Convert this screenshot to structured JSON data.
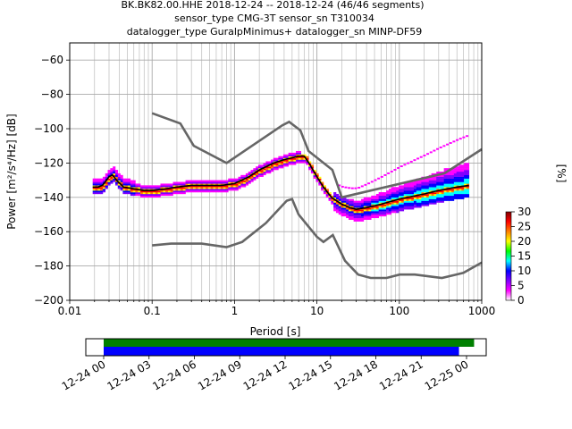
{
  "header": {
    "line1": "BK.BK82.00.HHE   2018-12-24 -- 2018-12-24  (46/46 segments)",
    "line2": "sensor_type CMG-3T sensor_sn T310034",
    "line3": "datalogger_type GuralpMinimus+ datalogger_sn MINP-DF59"
  },
  "chart_data": {
    "type": "heatmap",
    "xlabel": "Period [s]",
    "ylabel": "Power [m²/s⁴/Hz] [dB]",
    "xscale": "log",
    "xlim": [
      0.01,
      1000
    ],
    "ylim": [
      -200,
      -50
    ],
    "x_ticks": [
      {
        "v": 0.01,
        "label": "0.01"
      },
      {
        "v": 0.1,
        "label": "0.1"
      },
      {
        "v": 1,
        "label": "1"
      },
      {
        "v": 10,
        "label": "10"
      },
      {
        "v": 100,
        "label": "100"
      },
      {
        "v": 1000,
        "label": "1000"
      }
    ],
    "y_ticks": [
      {
        "v": -60,
        "label": "−60"
      },
      {
        "v": -80,
        "label": "−80"
      },
      {
        "v": -100,
        "label": "−100"
      },
      {
        "v": -120,
        "label": "−120"
      },
      {
        "v": -140,
        "label": "−140"
      },
      {
        "v": -160,
        "label": "−160"
      },
      {
        "v": -180,
        "label": "−180"
      },
      {
        "v": -200,
        "label": "−200"
      }
    ],
    "grid": true,
    "colorbar": {
      "label": "[%]",
      "range": [
        0,
        30
      ],
      "ticks": [
        {
          "v": 0,
          "label": "0"
        },
        {
          "v": 5,
          "label": "5"
        },
        {
          "v": 10,
          "label": "10"
        },
        {
          "v": 15,
          "label": "15"
        },
        {
          "v": 20,
          "label": "20"
        },
        {
          "v": 25,
          "label": "25"
        },
        {
          "v": 30,
          "label": "30"
        }
      ],
      "colors": [
        "#ffffff",
        "#ff00ff",
        "#8000ff",
        "#0000ff",
        "#00ffff",
        "#00ff00",
        "#ffff00",
        "#ff8000",
        "#ff0000",
        "#800000"
      ]
    },
    "mode_line": [
      [
        0.019,
        -134
      ],
      [
        0.022,
        -134
      ],
      [
        0.025,
        -133
      ],
      [
        0.03,
        -128
      ],
      [
        0.033,
        -127
      ],
      [
        0.037,
        -130
      ],
      [
        0.045,
        -134
      ],
      [
        0.06,
        -135
      ],
      [
        0.08,
        -136
      ],
      [
        0.1,
        -136
      ],
      [
        0.15,
        -135
      ],
      [
        0.2,
        -134
      ],
      [
        0.3,
        -133
      ],
      [
        0.5,
        -133
      ],
      [
        0.7,
        -133
      ],
      [
        1,
        -132
      ],
      [
        1.5,
        -128
      ],
      [
        2,
        -124
      ],
      [
        3,
        -120
      ],
      [
        4,
        -118
      ],
      [
        5,
        -117
      ],
      [
        6,
        -116
      ],
      [
        7,
        -116
      ],
      [
        8,
        -120
      ],
      [
        10,
        -128
      ],
      [
        12,
        -134
      ],
      [
        15,
        -140
      ],
      [
        20,
        -144
      ],
      [
        25,
        -146
      ],
      [
        30,
        -147
      ],
      [
        40,
        -146
      ],
      [
        60,
        -144
      ],
      [
        100,
        -141
      ],
      [
        200,
        -138
      ],
      [
        300,
        -136
      ],
      [
        500,
        -134
      ],
      [
        700,
        -133
      ]
    ],
    "nhnm": [
      [
        0.1,
        -91
      ],
      [
        0.22,
        -97
      ],
      [
        0.32,
        -110
      ],
      [
        0.8,
        -120
      ],
      [
        3.8,
        -98
      ],
      [
        4.6,
        -96
      ],
      [
        6.3,
        -101
      ],
      [
        7.9,
        -113
      ],
      [
        15.4,
        -124
      ],
      [
        20,
        -140
      ],
      [
        354,
        -126
      ],
      [
        1000,
        -112
      ]
    ],
    "nlnm": [
      [
        0.1,
        -168
      ],
      [
        0.17,
        -167
      ],
      [
        0.4,
        -167
      ],
      [
        0.8,
        -169
      ],
      [
        1.24,
        -166
      ],
      [
        2.4,
        -155
      ],
      [
        4.3,
        -142
      ],
      [
        5,
        -141
      ],
      [
        6,
        -150
      ],
      [
        10,
        -163
      ],
      [
        12,
        -166
      ],
      [
        15.6,
        -162
      ],
      [
        21.9,
        -177
      ],
      [
        31.6,
        -185
      ],
      [
        45,
        -187
      ],
      [
        70,
        -187
      ],
      [
        101,
        -185
      ],
      [
        154,
        -185
      ],
      [
        328,
        -187
      ],
      [
        600,
        -184
      ],
      [
        1000,
        -178
      ]
    ],
    "time_axis": {
      "range_hours": [
        0,
        24
      ],
      "tick_labels": [
        {
          "h": 0,
          "label": "12-24 00"
        },
        {
          "h": 3,
          "label": "12-24 03"
        },
        {
          "h": 6,
          "label": "12-24 06"
        },
        {
          "h": 9,
          "label": "12-24 09"
        },
        {
          "h": 12,
          "label": "12-24 12"
        },
        {
          "h": 15,
          "label": "12-24 15"
        },
        {
          "h": 18,
          "label": "12-24 18"
        },
        {
          "h": 21,
          "label": "12-24 21"
        },
        {
          "h": 24,
          "label": "12-25 00"
        }
      ],
      "data_coverage": {
        "color": "#008000",
        "start_h": 0,
        "end_h": 24.5
      },
      "psd_coverage": {
        "color": "#0000ff",
        "start_h": 0,
        "end_h": 23.5
      }
    }
  }
}
